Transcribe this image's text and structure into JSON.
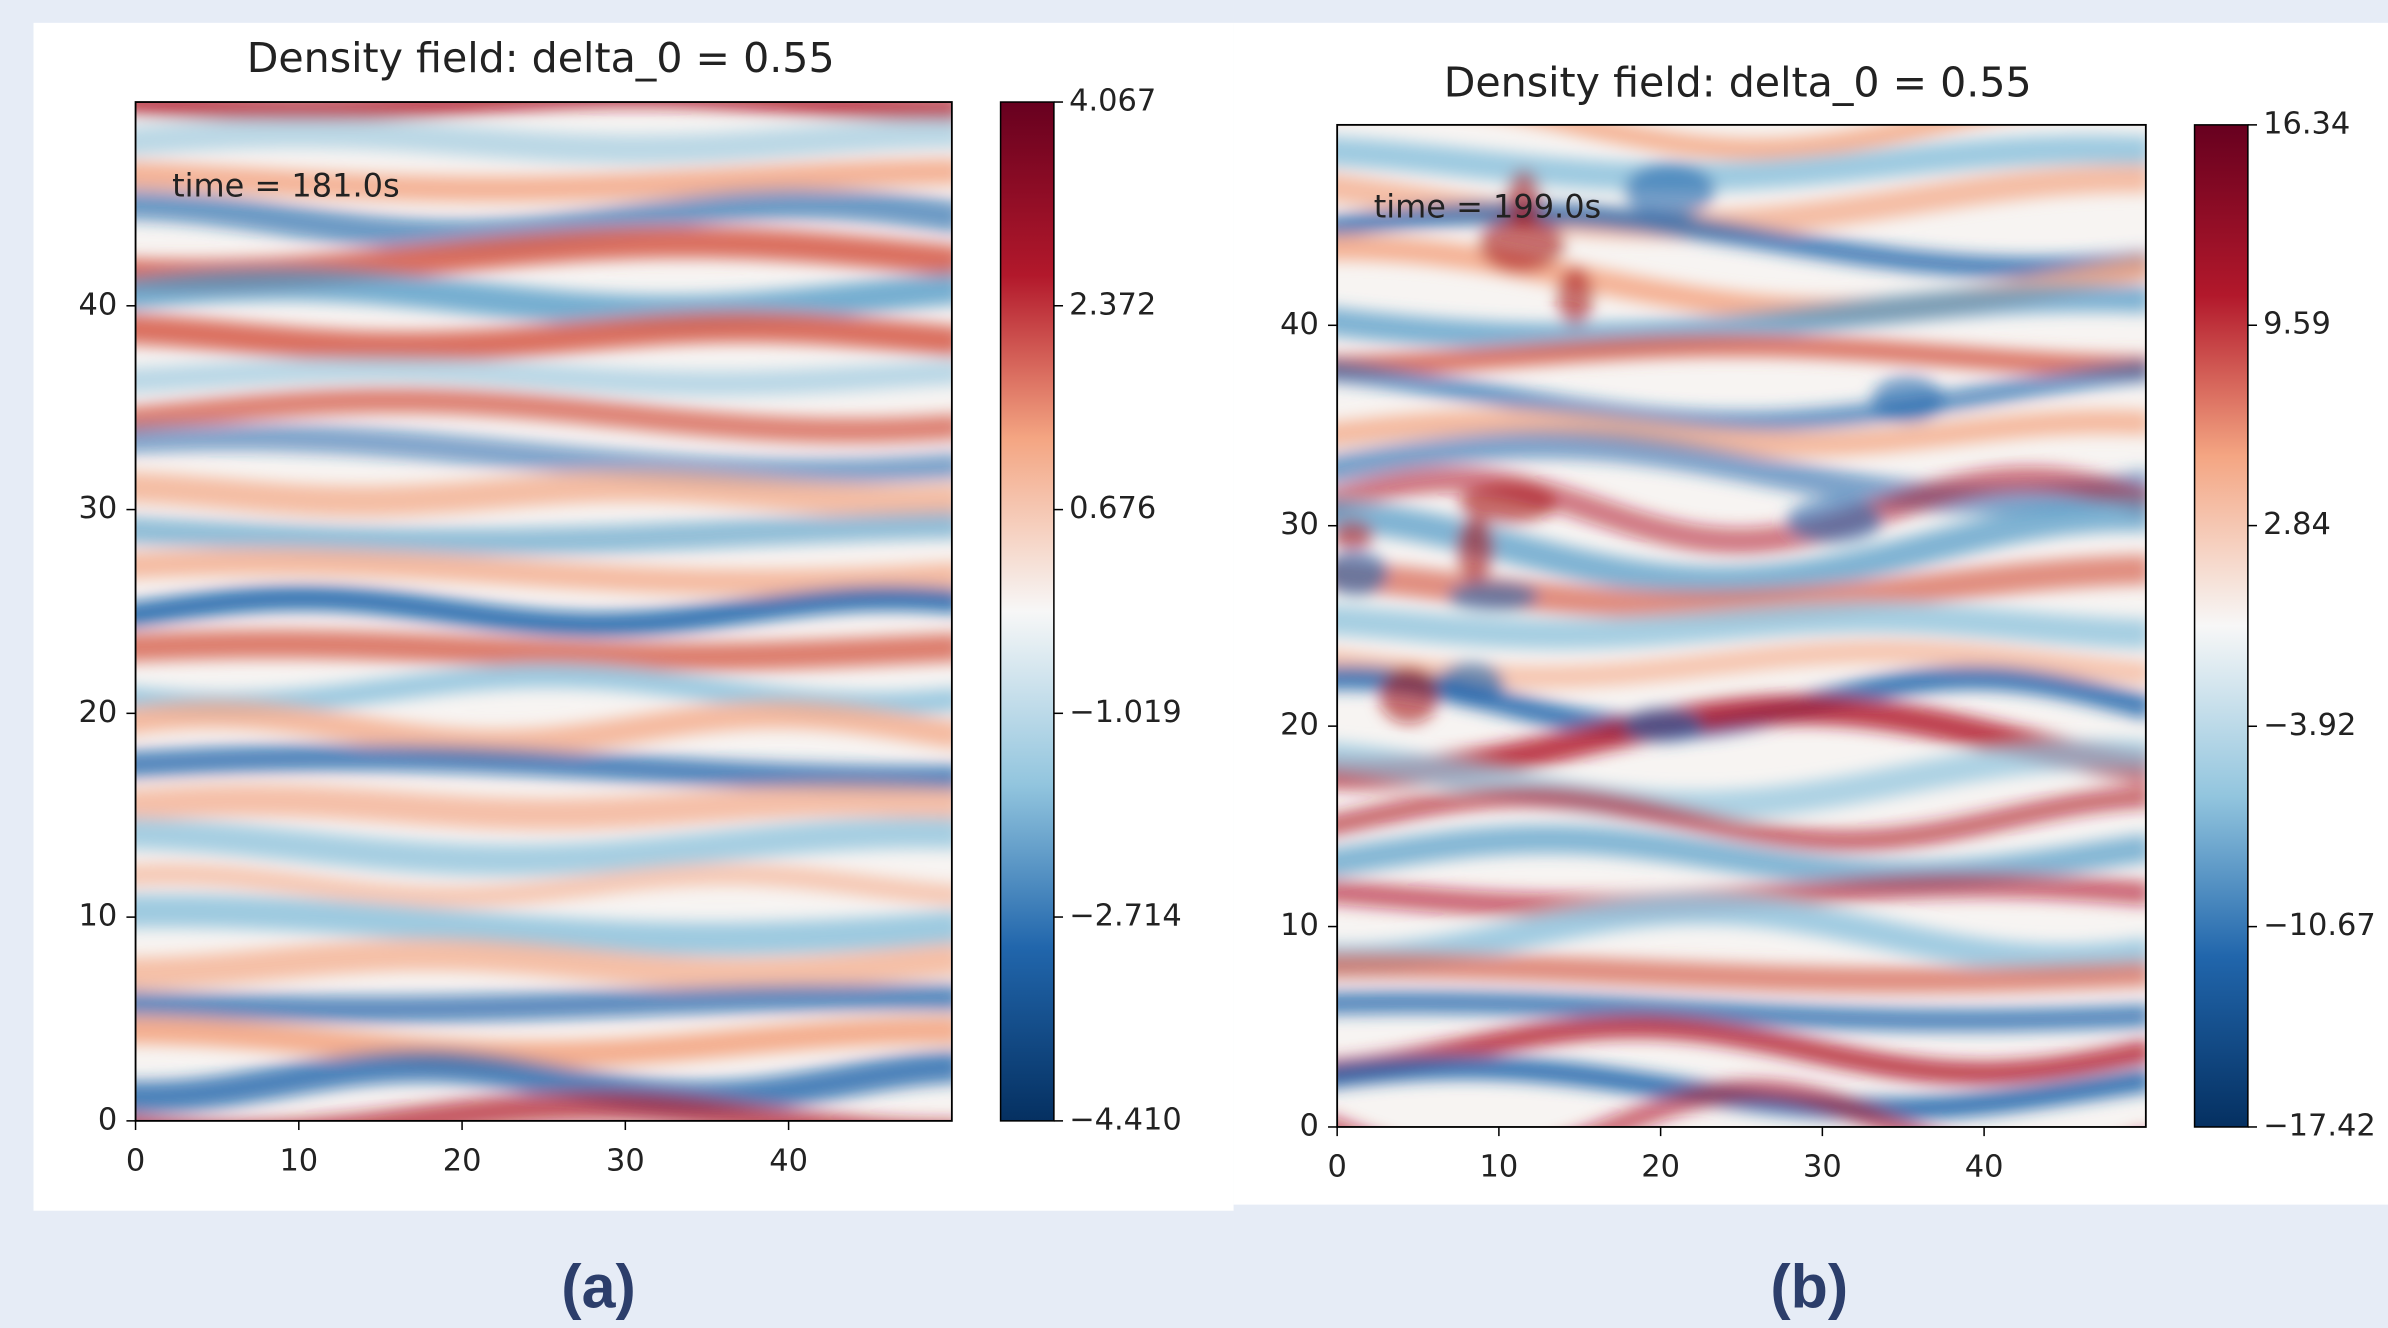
{
  "chart_data": [
    {
      "type": "heatmap",
      "title": "Density field: delta_0 = 0.55",
      "annotation": "time = 181.0s",
      "xlim": [
        0,
        50
      ],
      "ylim": [
        0,
        50
      ],
      "xticks": [
        0,
        10,
        20,
        30,
        40
      ],
      "yticks": [
        0,
        10,
        20,
        30,
        40
      ],
      "clim": [
        -4.41,
        4.067
      ],
      "cticks": [
        {
          "value": -4.41,
          "label": "−4.410"
        },
        {
          "value": -2.714,
          "label": "−2.714"
        },
        {
          "value": -1.019,
          "label": "−1.019"
        },
        0.676,
        2.372,
        4.067
      ],
      "colormap": "RdBu_r"
    },
    {
      "type": "heatmap",
      "title": "Density field: delta_0 = 0.55",
      "annotation": "time = 199.0s",
      "xlim": [
        0,
        50
      ],
      "ylim": [
        0,
        50
      ],
      "xticks": [
        0,
        10,
        20,
        30,
        40
      ],
      "yticks": [
        0,
        10,
        20,
        30,
        40
      ],
      "clim": [
        -17.42,
        16.34
      ],
      "cticks": [
        {
          "value": -17.42,
          "label": "−17.42"
        },
        {
          "value": -10.67,
          "label": "−10.67"
        },
        {
          "value": -3.92,
          "label": "−3.92"
        },
        2.84,
        9.59,
        16.34
      ],
      "colormap": "RdBu_r"
    }
  ],
  "captions": [
    "(a)",
    "(b)"
  ]
}
